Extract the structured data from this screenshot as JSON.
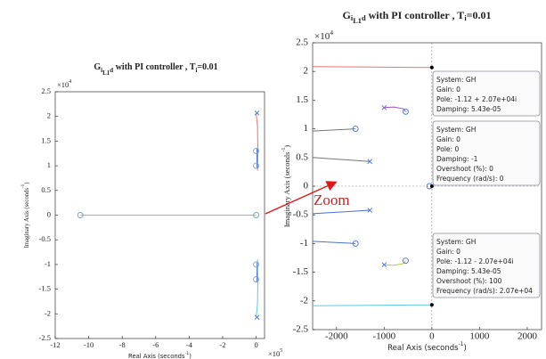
{
  "chart_data": [
    {
      "type": "rlocus",
      "title": [
        {
          "text": "G"
        },
        {
          "text": "i",
          "shift": "sub"
        },
        {
          "text": "L1",
          "shift": "sub2"
        },
        {
          "text": "d",
          "shift": "sub"
        },
        {
          "text": " with PI controller , T"
        },
        {
          "text": "i",
          "shift": "sub"
        },
        {
          "text": "=0.01"
        }
      ],
      "xlabel": [
        {
          "text": "Real Axis (seconds"
        },
        {
          "text": "-1",
          "shift": "super"
        },
        {
          "text": ")"
        }
      ],
      "ylabel": [
        {
          "text": "Imaginary Axis (seconds"
        },
        {
          "text": "-1",
          "shift": "super"
        },
        {
          "text": ")"
        }
      ],
      "x_exponent": [
        {
          "text": "×10"
        },
        {
          "text": "5",
          "shift": "super"
        }
      ],
      "y_exponent": [
        {
          "text": "×10"
        },
        {
          "text": "4",
          "shift": "super"
        }
      ],
      "xlim": [
        -12,
        0.5
      ],
      "xticks": [
        -12,
        -10,
        -8,
        -6,
        -4,
        -2,
        0
      ],
      "ylim": [
        -2.5,
        2.5
      ],
      "yticks": [
        -2.5,
        -2,
        -1.5,
        -1,
        -0.5,
        0,
        0.5,
        1,
        1.5,
        2,
        2.5
      ],
      "zero_lines": false,
      "series": [
        {
          "color": "#5cc9e8",
          "x": [
            -10.5,
            0
          ],
          "values": [
            0,
            0
          ]
        },
        {
          "color": "#e8736f",
          "x": [
            0,
            0.08,
            0.1,
            0.08
          ],
          "values": [
            2.07,
            1.8,
            1.3,
            0.9
          ]
        },
        {
          "color": "#4a6fd0",
          "x": [
            0.05,
            0.05
          ],
          "values": [
            1.35,
            0.95
          ]
        },
        {
          "color": "#4a6fd0",
          "x": [
            0.05,
            0.05
          ],
          "values": [
            -0.95,
            -1.35
          ]
        },
        {
          "color": "#5cc9e8",
          "x": [
            0,
            0.08,
            0.1,
            0.08
          ],
          "values": [
            -2.07,
            -1.8,
            -1.3,
            -0.9
          ]
        },
        {
          "color": "#7f9fb8",
          "marker": "o",
          "x": [
            -10.5,
            0,
            0,
            0,
            0,
            0
          ],
          "values": [
            0,
            1.3,
            1.0,
            0,
            -1.0,
            -1.3
          ]
        },
        {
          "color": "#4a6fd0",
          "marker": "x",
          "x": [
            0.05,
            0.05
          ],
          "values": [
            2.07,
            -2.07
          ]
        }
      ]
    },
    {
      "type": "rlocus",
      "title": [
        {
          "text": "G"
        },
        {
          "text": "i",
          "shift": "sub"
        },
        {
          "text": "L1",
          "shift": "sub2"
        },
        {
          "text": "d",
          "shift": "sub"
        },
        {
          "text": " with PI controller , T"
        },
        {
          "text": "i",
          "shift": "sub"
        },
        {
          "text": "=0.01"
        }
      ],
      "xlabel": [
        {
          "text": "Real Axis (seconds"
        },
        {
          "text": "-1",
          "shift": "super"
        },
        {
          "text": ")"
        }
      ],
      "ylabel": [
        {
          "text": "Imaginary Axis (seconds"
        },
        {
          "text": "-1",
          "shift": "super"
        },
        {
          "text": ")"
        }
      ],
      "y_exponent": [
        {
          "text": "×10"
        },
        {
          "text": "4",
          "shift": "super"
        }
      ],
      "xlim": [
        -2500,
        2300
      ],
      "xticks": [
        -2000,
        -1000,
        0,
        1000,
        2000
      ],
      "ylim": [
        -2.5,
        2.5
      ],
      "yticks": [
        -2.5,
        -2,
        -1.5,
        -1,
        -0.5,
        0,
        0.5,
        1,
        1.5,
        2,
        2.5
      ],
      "zero_lines": true,
      "series": [
        {
          "color": "#e8736f",
          "x": [
            -2500,
            -1500,
            -500,
            0
          ],
          "values": [
            2.085,
            2.078,
            2.072,
            2.07
          ]
        },
        {
          "color": "#777777",
          "x": [
            -2500,
            -1600
          ],
          "values": [
            0.96,
            1.0
          ]
        },
        {
          "color": "#777777",
          "x": [
            -2500,
            -1300
          ],
          "values": [
            0.5,
            0.43
          ]
        },
        {
          "color": "#9b4fc8",
          "x": [
            -1000,
            -800,
            -600,
            -550
          ],
          "values": [
            1.37,
            1.38,
            1.35,
            1.3
          ]
        },
        {
          "color": "#4a6fd0",
          "x": [
            -2500,
            -1300
          ],
          "values": [
            -0.48,
            -0.42
          ]
        },
        {
          "color": "#4a6fd0",
          "x": [
            -2500,
            -1600
          ],
          "values": [
            -0.96,
            -1.0
          ]
        },
        {
          "color": "#b5c93c",
          "x": [
            -1000,
            -800,
            -600,
            -550
          ],
          "values": [
            -1.37,
            -1.38,
            -1.35,
            -1.3
          ]
        },
        {
          "color": "#5cc9e8",
          "x": [
            -2500,
            -1500,
            -500,
            0
          ],
          "values": [
            -2.085,
            -2.078,
            -2.072,
            -2.07
          ]
        },
        {
          "color": "#4a6fd0",
          "marker": "o",
          "x": [
            -1600,
            -550,
            -50,
            -1600,
            -550
          ],
          "values": [
            1.0,
            1.3,
            0,
            -1.0,
            -1.3
          ]
        },
        {
          "color": "#4a6fd0",
          "marker": "x",
          "x": [
            -1300,
            -1000,
            -1300,
            -1000
          ],
          "values": [
            0.43,
            1.37,
            -0.42,
            -1.37
          ]
        },
        {
          "color": "#000000",
          "marker": "dot",
          "x": [
            0,
            0,
            0
          ],
          "values": [
            2.07,
            0,
            -2.07
          ]
        }
      ],
      "datatips": [
        {
          "lines": [
            "System: GH",
            "Gain: 0",
            "Pole: -1.12 + 2.07e+04i",
            "Damping: 5.43e-05"
          ]
        },
        {
          "lines": [
            "System: GH",
            "Gain: 0",
            "Pole: 0",
            "Damping: -1",
            "Overshoot (%): 0",
            "Frequency (rad/s): 0"
          ]
        },
        {
          "lines": [
            "System: GH",
            "Gain: 0",
            "Pole: -1.12 - 2.07e+04i",
            "Damping: 5.43e-05",
            "Overshoot (%): 100",
            "Frequency (rad/s): 2.07e+04"
          ]
        }
      ]
    }
  ],
  "annotation": "Zoom"
}
